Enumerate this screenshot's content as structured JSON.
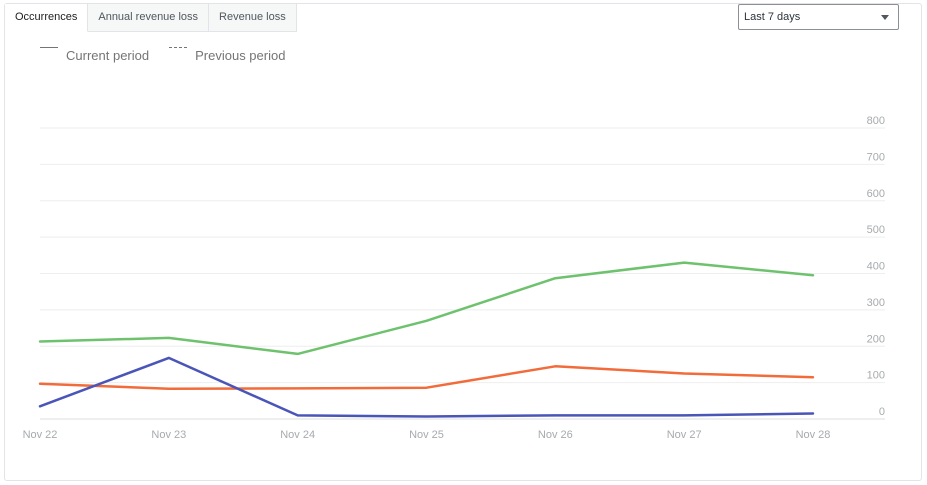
{
  "tabs": [
    {
      "label": "Occurrences",
      "active": true
    },
    {
      "label": "Annual revenue loss",
      "active": false
    },
    {
      "label": "Revenue loss",
      "active": false
    }
  ],
  "period_select": {
    "value": "Last 7 days",
    "icon": "chevron-down-icon"
  },
  "legend": {
    "current": "Current period",
    "previous": "Previous period"
  },
  "chart_data": {
    "type": "line",
    "categories": [
      "Nov 22",
      "Nov 23",
      "Nov 24",
      "Nov 25",
      "Nov 26",
      "Nov 27",
      "Nov 28"
    ],
    "yticks": [
      0,
      100,
      200,
      300,
      400,
      500,
      600,
      700,
      800
    ],
    "ylim": [
      0,
      800
    ],
    "y_axis_position": "right",
    "grid": true,
    "series": [
      {
        "values": [
          213,
          223,
          179,
          270,
          387,
          430,
          395
        ],
        "color": "#6ec26e"
      },
      {
        "values": [
          97,
          83,
          84,
          86,
          145,
          125,
          115
        ],
        "color": "#f26b3a"
      },
      {
        "values": [
          35,
          168,
          10,
          7,
          10,
          10,
          15
        ],
        "color": "#4a55b8"
      }
    ]
  }
}
